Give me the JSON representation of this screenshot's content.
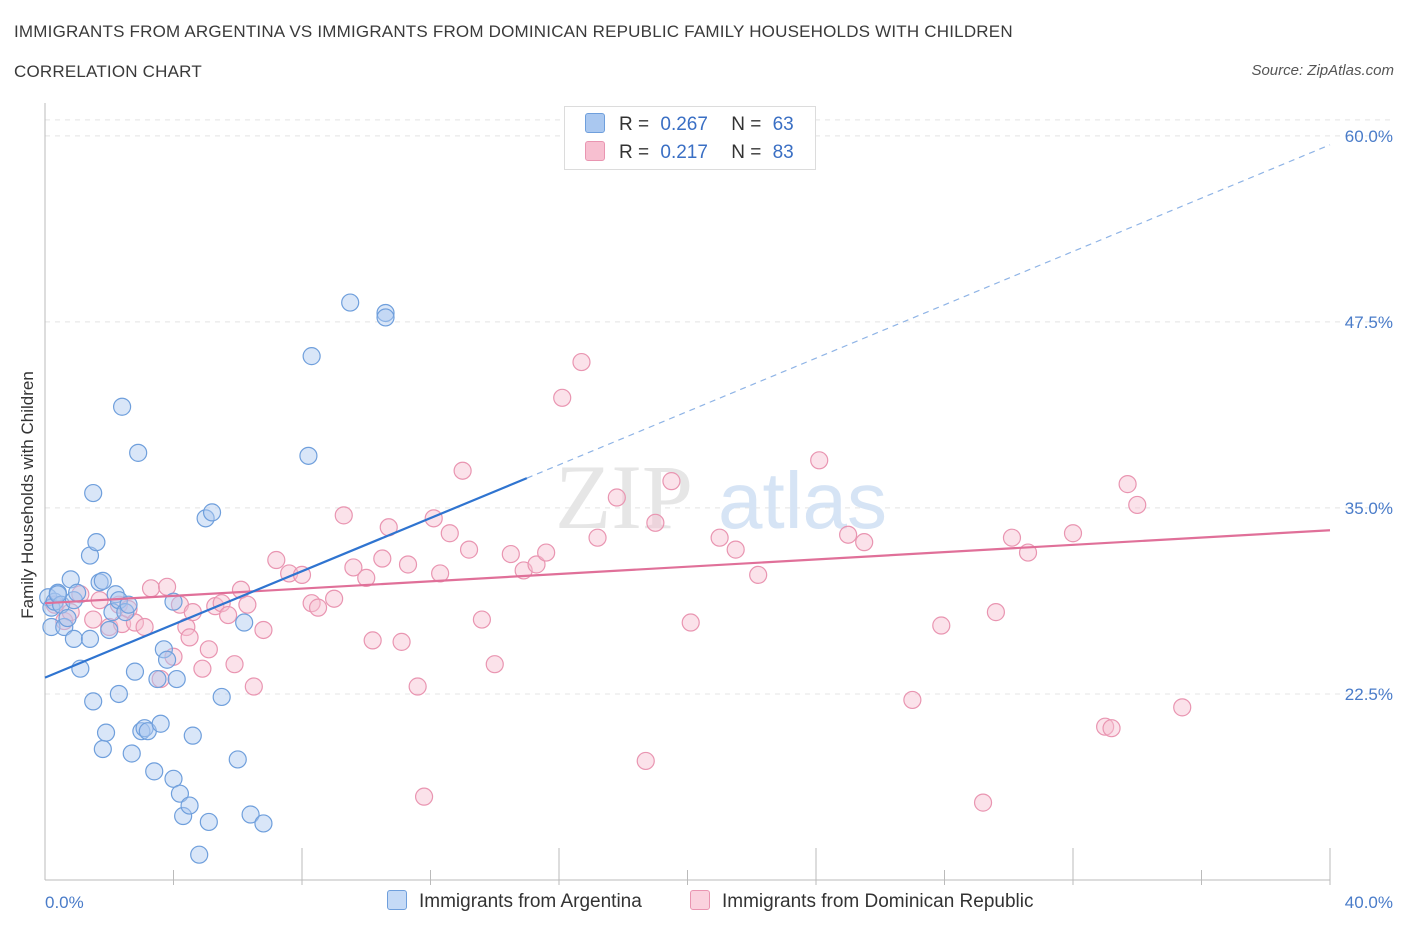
{
  "title": "IMMIGRANTS FROM ARGENTINA VS IMMIGRANTS FROM DOMINICAN REPUBLIC FAMILY HOUSEHOLDS WITH CHILDREN",
  "subtitle": "CORRELATION CHART",
  "source": "Source: ZipAtlas.com",
  "watermark": {
    "zip": "ZIP",
    "atlas": "atlas"
  },
  "colors": {
    "argentina_fill": "#aac8f0",
    "argentina_stroke": "#6f9fdc",
    "argentina_line": "#2f74d0",
    "dominican_fill": "#f7bfd0",
    "dominican_stroke": "#e995b1",
    "dominican_line": "#e07099",
    "tick": "#4a7cc9"
  },
  "legend": {
    "rows": [
      {
        "r_label": "R =",
        "r_value": "0.267",
        "n_label": "N =",
        "n_value": "63"
      },
      {
        "r_label": "R =",
        "r_value": "0.217",
        "n_label": "N =",
        "n_value": "83"
      }
    ]
  },
  "chart_data": {
    "type": "scatter",
    "title": "IMMIGRANTS FROM ARGENTINA VS IMMIGRANTS FROM DOMINICAN REPUBLIC FAMILY HOUSEHOLDS WITH CHILDREN",
    "xlabel": "",
    "ylabel": "Family Households with Children",
    "xlim": [
      0,
      40
    ],
    "ylim": [
      10,
      61.2
    ],
    "x_tick_labels": [
      "0.0%",
      "40.0%"
    ],
    "y_ticks": [
      22.5,
      35.0,
      47.5,
      60.0
    ],
    "y_tick_labels": [
      "22.5%",
      "35.0%",
      "47.5%",
      "60.0%"
    ],
    "grid": "horizontal dashed",
    "legend_position": "top-center",
    "series": [
      {
        "name": "Immigrants from Argentina",
        "points": [
          [
            0.1,
            29.0
          ],
          [
            0.2,
            28.3
          ],
          [
            0.2,
            27.0
          ],
          [
            0.3,
            28.7
          ],
          [
            0.4,
            29.3
          ],
          [
            0.5,
            28.5
          ],
          [
            0.6,
            27.0
          ],
          [
            0.7,
            27.6
          ],
          [
            0.8,
            30.2
          ],
          [
            0.9,
            28.8
          ],
          [
            0.9,
            26.2
          ],
          [
            1.0,
            29.3
          ],
          [
            1.1,
            24.2
          ],
          [
            1.4,
            31.8
          ],
          [
            1.4,
            26.2
          ],
          [
            1.5,
            22.0
          ],
          [
            1.5,
            36.0
          ],
          [
            1.6,
            32.7
          ],
          [
            1.7,
            30.0
          ],
          [
            1.8,
            30.1
          ],
          [
            1.8,
            18.8
          ],
          [
            1.9,
            19.9
          ],
          [
            2.0,
            26.8
          ],
          [
            2.1,
            28.0
          ],
          [
            2.2,
            29.2
          ],
          [
            2.3,
            28.8
          ],
          [
            2.3,
            22.5
          ],
          [
            2.4,
            41.8
          ],
          [
            2.5,
            28.0
          ],
          [
            2.6,
            28.5
          ],
          [
            2.7,
            18.5
          ],
          [
            2.8,
            24.0
          ],
          [
            2.9,
            38.7
          ],
          [
            3.0,
            20.0
          ],
          [
            3.1,
            20.2
          ],
          [
            3.2,
            20.0
          ],
          [
            3.4,
            17.3
          ],
          [
            3.5,
            23.5
          ],
          [
            3.6,
            20.5
          ],
          [
            3.7,
            25.5
          ],
          [
            3.8,
            24.8
          ],
          [
            4.0,
            16.8
          ],
          [
            4.0,
            28.7
          ],
          [
            4.1,
            23.5
          ],
          [
            4.2,
            15.8
          ],
          [
            4.3,
            14.3
          ],
          [
            4.5,
            15.0
          ],
          [
            4.6,
            19.7
          ],
          [
            4.8,
            11.7
          ],
          [
            5.0,
            34.3
          ],
          [
            5.1,
            13.9
          ],
          [
            5.2,
            34.7
          ],
          [
            5.5,
            22.3
          ],
          [
            6.0,
            18.1
          ],
          [
            6.2,
            27.3
          ],
          [
            6.4,
            14.4
          ],
          [
            6.8,
            13.8
          ],
          [
            8.2,
            38.5
          ],
          [
            8.3,
            45.2
          ],
          [
            9.5,
            48.8
          ],
          [
            10.6,
            48.1
          ],
          [
            10.6,
            47.8
          ],
          [
            0.4,
            29.2
          ]
        ],
        "trend": {
          "x": [
            0,
            15
          ],
          "y": [
            23.6,
            37.0
          ]
        },
        "trend_extension": {
          "x": [
            15,
            40
          ],
          "y": [
            37.0,
            59.4
          ]
        }
      },
      {
        "name": "Immigrants from Dominican Republic",
        "points": [
          [
            0.3,
            28.5
          ],
          [
            0.6,
            27.4
          ],
          [
            0.8,
            28.0
          ],
          [
            1.1,
            29.2
          ],
          [
            1.5,
            27.5
          ],
          [
            1.7,
            28.8
          ],
          [
            2.0,
            27.0
          ],
          [
            2.3,
            28.5
          ],
          [
            2.4,
            27.2
          ],
          [
            2.6,
            28.2
          ],
          [
            2.8,
            27.3
          ],
          [
            3.1,
            27.0
          ],
          [
            3.3,
            29.6
          ],
          [
            3.6,
            23.5
          ],
          [
            3.8,
            29.7
          ],
          [
            4.0,
            25.0
          ],
          [
            4.2,
            28.5
          ],
          [
            4.4,
            27.0
          ],
          [
            4.5,
            26.3
          ],
          [
            4.6,
            28.0
          ],
          [
            4.9,
            24.2
          ],
          [
            5.1,
            25.5
          ],
          [
            5.3,
            28.4
          ],
          [
            5.5,
            28.6
          ],
          [
            5.7,
            27.8
          ],
          [
            5.9,
            24.5
          ],
          [
            6.1,
            29.5
          ],
          [
            6.3,
            28.5
          ],
          [
            6.5,
            23.0
          ],
          [
            6.8,
            26.8
          ],
          [
            7.2,
            31.5
          ],
          [
            7.6,
            30.6
          ],
          [
            8.0,
            30.5
          ],
          [
            8.3,
            28.6
          ],
          [
            8.5,
            28.3
          ],
          [
            9.0,
            28.9
          ],
          [
            9.3,
            34.5
          ],
          [
            9.6,
            31.0
          ],
          [
            10.0,
            30.3
          ],
          [
            10.2,
            26.1
          ],
          [
            10.5,
            31.6
          ],
          [
            10.7,
            33.7
          ],
          [
            11.1,
            26.0
          ],
          [
            11.3,
            31.2
          ],
          [
            11.6,
            23.0
          ],
          [
            11.8,
            15.6
          ],
          [
            12.1,
            34.3
          ],
          [
            12.3,
            30.6
          ],
          [
            12.6,
            33.3
          ],
          [
            13.0,
            37.5
          ],
          [
            13.2,
            32.2
          ],
          [
            13.6,
            27.5
          ],
          [
            14.0,
            24.5
          ],
          [
            14.5,
            31.9
          ],
          [
            14.9,
            30.8
          ],
          [
            15.3,
            31.2
          ],
          [
            15.6,
            32.0
          ],
          [
            16.1,
            42.4
          ],
          [
            16.7,
            44.8
          ],
          [
            17.2,
            33.0
          ],
          [
            17.8,
            35.7
          ],
          [
            18.7,
            18.0
          ],
          [
            19.0,
            34.0
          ],
          [
            19.5,
            36.8
          ],
          [
            20.1,
            27.3
          ],
          [
            21.0,
            33.0
          ],
          [
            21.5,
            32.2
          ],
          [
            22.2,
            30.5
          ],
          [
            24.1,
            38.2
          ],
          [
            25.0,
            33.2
          ],
          [
            25.5,
            32.7
          ],
          [
            27.0,
            22.1
          ],
          [
            27.9,
            27.1
          ],
          [
            29.2,
            15.2
          ],
          [
            29.6,
            28.0
          ],
          [
            30.1,
            33.0
          ],
          [
            30.6,
            32.0
          ],
          [
            32.0,
            33.3
          ],
          [
            33.0,
            20.3
          ],
          [
            33.2,
            20.2
          ],
          [
            33.7,
            36.6
          ],
          [
            34.0,
            35.2
          ],
          [
            35.4,
            21.6
          ]
        ],
        "trend": {
          "x": [
            0,
            40
          ],
          "y": [
            28.6,
            33.5
          ]
        }
      }
    ]
  },
  "bottom_legend": [
    "Immigrants from Argentina",
    "Immigrants from Dominican Republic"
  ]
}
